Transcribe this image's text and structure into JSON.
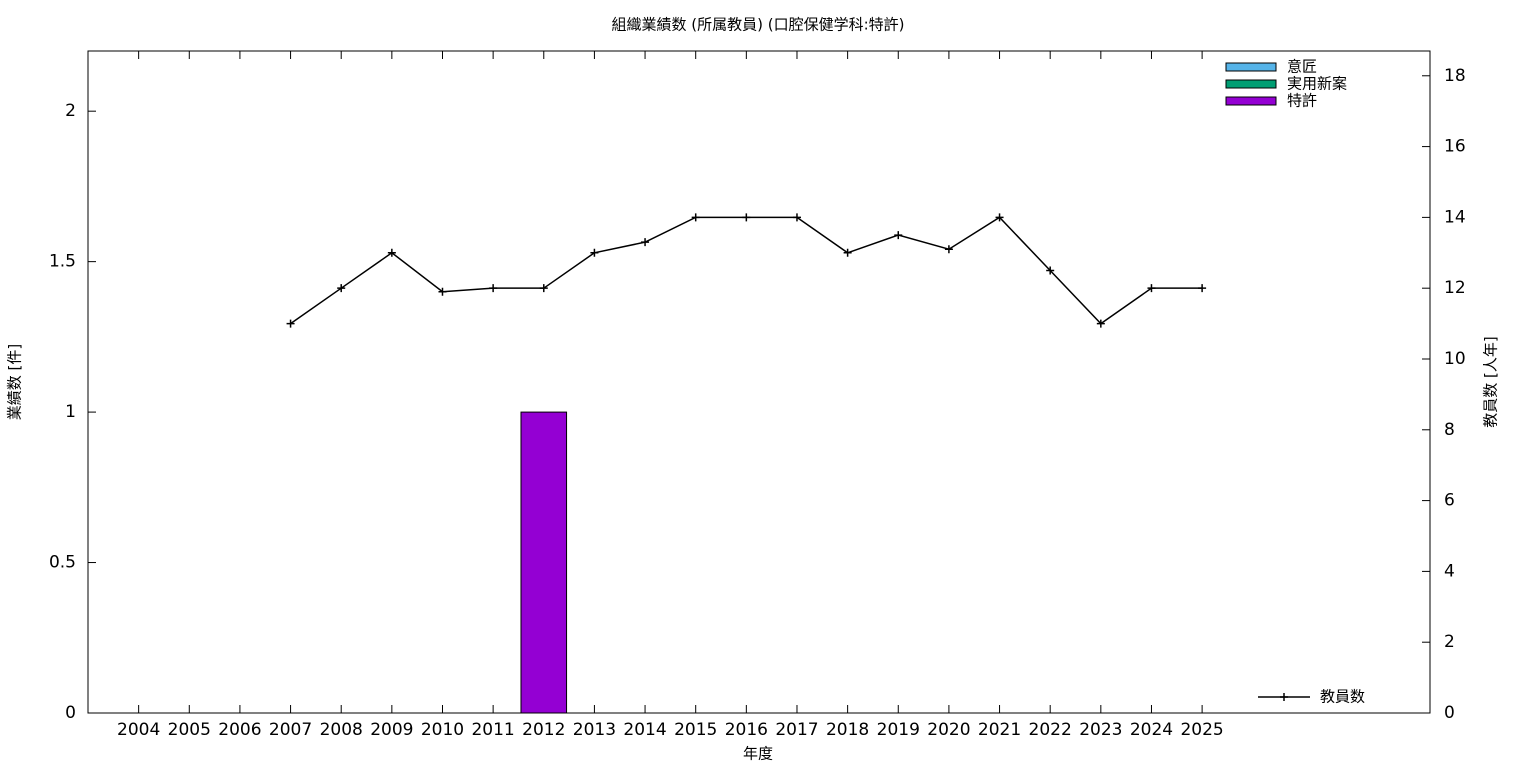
{
  "chart_data": {
    "type": "bar",
    "stacked": true,
    "title": "組織業績数 (所属教員) (口腔保健学科:特許)",
    "x_label": "年度",
    "y_label": "業績数 [件]",
    "y2_label": "教員数 [人年]",
    "categories": [
      "2004",
      "2005",
      "2006",
      "2007",
      "2008",
      "2009",
      "2010",
      "2011",
      "2012",
      "2013",
      "2014",
      "2015",
      "2016",
      "2017",
      "2018",
      "2019",
      "2020",
      "2021",
      "2022",
      "2023",
      "2024",
      "2025"
    ],
    "series": [
      {
        "name": "意匠",
        "color": "#56b4e9",
        "values": [
          0,
          0,
          0,
          0,
          0,
          0,
          0,
          0,
          0,
          0,
          0,
          0,
          0,
          0,
          0,
          0,
          0,
          0,
          0,
          0,
          0,
          0
        ]
      },
      {
        "name": "実用新案",
        "color": "#009e73",
        "values": [
          0,
          0,
          0,
          0,
          0,
          0,
          0,
          0,
          0,
          0,
          0,
          0,
          0,
          0,
          0,
          0,
          0,
          0,
          0,
          0,
          0,
          0
        ]
      },
      {
        "name": "特許",
        "color": "#9400d3",
        "values": [
          0,
          0,
          0,
          0,
          0,
          0,
          0,
          0,
          1,
          0,
          0,
          0,
          0,
          0,
          0,
          0,
          0,
          0,
          0,
          0,
          0,
          0
        ]
      },
      {
        "name": "教員数",
        "type": "line",
        "axis": "y2",
        "color": "#000000",
        "values": [
          null,
          null,
          null,
          11,
          12,
          13,
          11.9,
          12,
          12,
          13,
          13.3,
          14,
          14,
          14,
          13,
          13.5,
          13.1,
          14,
          12.5,
          11,
          12,
          12
        ]
      }
    ],
    "ylim": [
      0,
      2.2
    ],
    "yticks": [
      0,
      0.5,
      1,
      1.5,
      2
    ],
    "y2lim": [
      0,
      18.7
    ],
    "y2ticks": [
      0,
      2,
      4,
      6,
      8,
      10,
      12,
      14,
      16,
      18
    ]
  }
}
